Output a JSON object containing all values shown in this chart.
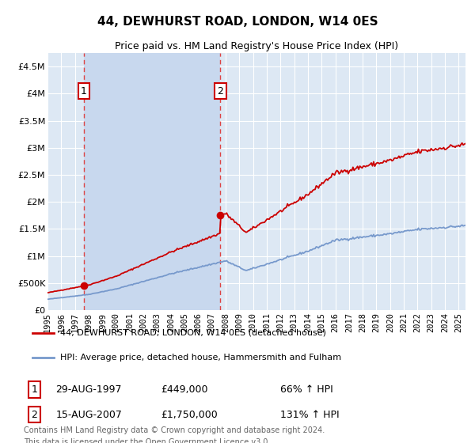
{
  "title": "44, DEWHURST ROAD, LONDON, W14 0ES",
  "subtitle": "Price paid vs. HM Land Registry's House Price Index (HPI)",
  "legend_line1": "44, DEWHURST ROAD, LONDON, W14 0ES (detached house)",
  "legend_line2": "HPI: Average price, detached house, Hammersmith and Fulham",
  "footer": "Contains HM Land Registry data © Crown copyright and database right 2024.\nThis data is licensed under the Open Government Licence v3.0.",
  "table_rows": [
    {
      "num": "1",
      "date": "29-AUG-1997",
      "price": "£449,000",
      "hpi": "66% ↑ HPI"
    },
    {
      "num": "2",
      "date": "15-AUG-2007",
      "price": "£1,750,000",
      "hpi": "131% ↑ HPI"
    }
  ],
  "sale1_year": 1997.66,
  "sale1_price": 449000,
  "sale2_year": 2007.62,
  "sale2_price": 1750000,
  "ylim": [
    0,
    4750000
  ],
  "yticks": [
    0,
    500000,
    1000000,
    1500000,
    2000000,
    2500000,
    3000000,
    3500000,
    4000000,
    4500000
  ],
  "ytick_labels": [
    "£0",
    "£500K",
    "£1M",
    "£1.5M",
    "£2M",
    "£2.5M",
    "£3M",
    "£3.5M",
    "£4M",
    "£4.5M"
  ],
  "red_line_color": "#cc0000",
  "blue_line_color": "#7799cc",
  "background_color": "#dce9f5",
  "plot_bg_color": "#dde8f4",
  "shade_color": "#c8d8ee",
  "grid_color": "#ffffff",
  "sale_marker_color": "#cc0000",
  "dashed_line_color": "#dd4444",
  "annotation_box_color": "#ffffff",
  "annotation_border_color": "#cc0000",
  "xlim_start": 1995.0,
  "xlim_end": 2025.5
}
